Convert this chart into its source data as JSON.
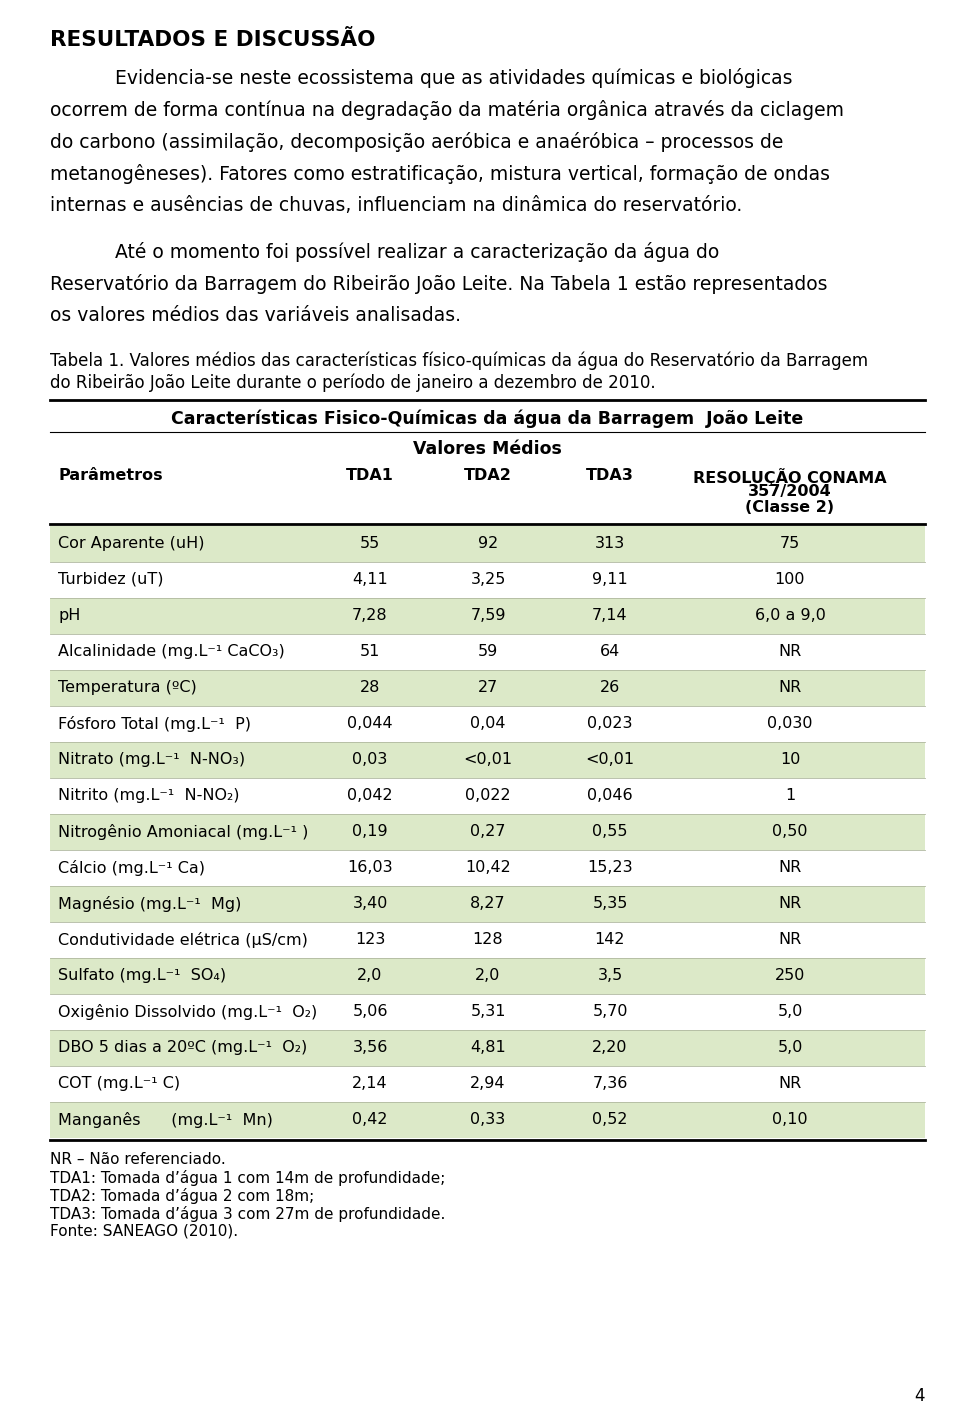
{
  "title_bold": "RESULTADOS E DISCUSSÃO",
  "para1_lines": [
    "Evidencia-se neste ecossistema que as atividades químicas e biológicas",
    "ocorrem de forma contínua na degradação da matéria orgânica através da ciclagem",
    "do carbono (assimilação, decomposição aeróbica e anaéróbica – processos de",
    "metanogêneses). Fatores como estratificação, mistura vertical, formação de ondas",
    "internas e ausências de chuvas, influenciam na dinâmica do reservatório."
  ],
  "para2_lines": [
    "Até o momento foi possível realizar a caracterização da água do",
    "Reservatório da Barragem do Ribeirão João Leite. Na Tabela 1 estão representados",
    "os valores médios das variáveis analisadas."
  ],
  "caption_lines": [
    "Tabela 1. Valores médios das características físico-químicas da água do Reservatório da Barragem",
    "do Ribeirão João Leite durante o período de janeiro a dezembro de 2010."
  ],
  "table_header1": "Características Fisico-Químicas da água da Barragem  João Leite",
  "table_header2": "Valores Médios",
  "rows": [
    [
      "Cor Aparente (uH)",
      "55",
      "92",
      "313",
      "75"
    ],
    [
      "Turbidez (uT)",
      "4,11",
      "3,25",
      "9,11",
      "100"
    ],
    [
      "pH",
      "7,28",
      "7,59",
      "7,14",
      "6,0 a 9,0"
    ],
    [
      "Alcalinidade (mg.L⁻¹ CaCO₃)",
      "51",
      "59",
      "64",
      "NR"
    ],
    [
      "Temperatura (ºC)",
      "28",
      "27",
      "26",
      "NR"
    ],
    [
      "Fósforo Total (mg.L⁻¹  P)",
      "0,044",
      "0,04",
      "0,023",
      "0,030"
    ],
    [
      "Nitrato (mg.L⁻¹  N-NO₃)",
      "0,03",
      "<0,01",
      "<0,01",
      "10"
    ],
    [
      "Nitrito (mg.L⁻¹  N-NO₂)",
      "0,042",
      "0,022",
      "0,046",
      "1"
    ],
    [
      "Nitrogênio Amoniacal (mg.L⁻¹ )",
      "0,19",
      "0,27",
      "0,55",
      "0,50"
    ],
    [
      "Cálcio (mg.L⁻¹ Ca)",
      "16,03",
      "10,42",
      "15,23",
      "NR"
    ],
    [
      "Magnésio (mg.L⁻¹  Mg)",
      "3,40",
      "8,27",
      "5,35",
      "NR"
    ],
    [
      "Condutividade elétrica (μS/cm)",
      "123",
      "128",
      "142",
      "NR"
    ],
    [
      "Sulfato (mg.L⁻¹  SO₄)",
      "2,0",
      "2,0",
      "3,5",
      "250"
    ],
    [
      "Oxigênio Dissolvido (mg.L⁻¹  O₂)",
      "5,06",
      "5,31",
      "5,70",
      "5,0"
    ],
    [
      "DBO 5 dias a 20ºC (mg.L⁻¹  O₂)",
      "3,56",
      "4,81",
      "2,20",
      "5,0"
    ],
    [
      "COT (mg.L⁻¹ C)",
      "2,14",
      "2,94",
      "7,36",
      "NR"
    ],
    [
      "Manganês      (mg.L⁻¹  Mn)",
      "0,42",
      "0,33",
      "0,52",
      "0,10"
    ]
  ],
  "shaded_rows": [
    0,
    2,
    4,
    6,
    8,
    10,
    12,
    14,
    16
  ],
  "shade_color": "#dce9c8",
  "footnotes": [
    "NR – Não referenciado.",
    "TDA1: Tomada d’água 1 com 14m de profundidade;",
    "TDA2: Tomada d’água 2 com 18m;",
    "TDA3: Tomada d’água 3 com 27m de profundidade.",
    "Fonte: SANEAGO (2010)."
  ],
  "page_number": "4",
  "bg_color": "#ffffff"
}
